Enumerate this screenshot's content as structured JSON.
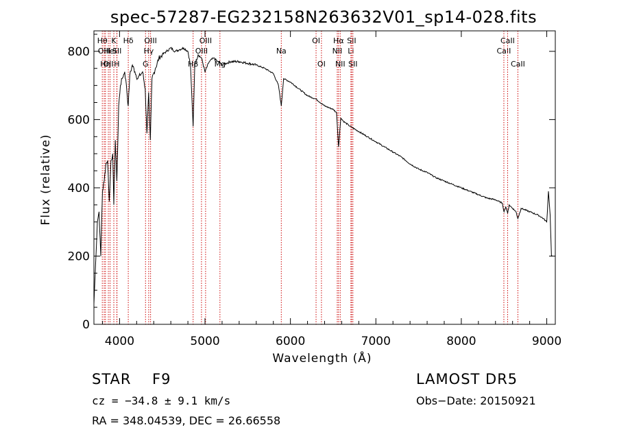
{
  "chart_data": {
    "type": "line",
    "title": "spec-57287-EG232158N263632V01_sp14-028.fits",
    "xlabel": "Wavelength (Å)",
    "ylabel": "Flux (relative)",
    "xlim": [
      3700,
      9100
    ],
    "ylim": [
      0,
      860
    ],
    "xticks": [
      4000,
      5000,
      6000,
      7000,
      8000,
      9000
    ],
    "yticks": [
      0,
      200,
      400,
      600,
      800
    ],
    "grid": false,
    "line_color": "#000000",
    "line_marker_color": "#cc0000",
    "series": [
      {
        "x": [
          3700,
          3720,
          3740,
          3760,
          3780,
          3800,
          3820,
          3840,
          3860,
          3880,
          3900,
          3920,
          3933,
          3950,
          3968,
          3990,
          4010,
          4030,
          4060,
          4080,
          4101,
          4120,
          4150,
          4180,
          4210,
          4240,
          4270,
          4300,
          4320,
          4340,
          4360,
          4380,
          4420,
          4460,
          4500,
          4550,
          4600,
          4650,
          4700,
          4750,
          4800,
          4830,
          4861,
          4880,
          4920,
          4960,
          5000,
          5050,
          5100,
          5150,
          5200,
          5250,
          5300,
          5400,
          5500,
          5600,
          5700,
          5800,
          5860,
          5893,
          5920,
          6000,
          6100,
          6200,
          6300,
          6400,
          6500,
          6540,
          6563,
          6590,
          6620,
          6700,
          6800,
          6900,
          7000,
          7100,
          7200,
          7300,
          7400,
          7500,
          7600,
          7700,
          7800,
          7900,
          8000,
          8100,
          8200,
          8300,
          8400,
          8480,
          8500,
          8520,
          8542,
          8560,
          8600,
          8640,
          8662,
          8700,
          8800,
          8900,
          8960,
          9000,
          9020,
          9040,
          9055,
          9070
        ],
        "y": [
          60,
          180,
          300,
          330,
          200,
          390,
          420,
          470,
          480,
          360,
          480,
          500,
          350,
          540,
          420,
          640,
          700,
          720,
          740,
          700,
          640,
          730,
          760,
          740,
          720,
          730,
          740,
          690,
          560,
          680,
          540,
          720,
          750,
          780,
          790,
          800,
          810,
          800,
          805,
          810,
          800,
          760,
          580,
          760,
          790,
          780,
          740,
          770,
          780,
          770,
          760,
          765,
          770,
          770,
          765,
          760,
          750,
          735,
          700,
          640,
          720,
          710,
          690,
          670,
          660,
          640,
          630,
          620,
          520,
          605,
          595,
          580,
          565,
          550,
          535,
          520,
          505,
          490,
          470,
          455,
          445,
          430,
          420,
          410,
          400,
          390,
          380,
          370,
          365,
          355,
          330,
          345,
          325,
          350,
          340,
          330,
          310,
          340,
          330,
          320,
          310,
          300,
          390,
          320,
          200,
          200
        ]
      }
    ],
    "lines": [
      {
        "w": 3798,
        "label": "Hθ",
        "row": 1
      },
      {
        "w": 3820,
        "label": "OIII",
        "row": 2
      },
      {
        "w": 3835,
        "label": "Hη",
        "row": 3
      },
      {
        "w": 3869,
        "label": "OII",
        "row": 3
      },
      {
        "w": 3889,
        "label": "HeI",
        "row": 2
      },
      {
        "w": 3933,
        "label": "K",
        "row": 1
      },
      {
        "w": 3968,
        "label": "H",
        "row": 3
      },
      {
        "w": 3970,
        "label": "SII",
        "row": 2
      },
      {
        "w": 4102,
        "label": "Hδ",
        "row": 1
      },
      {
        "w": 4304,
        "label": "G",
        "row": 3
      },
      {
        "w": 4341,
        "label": "Hγ",
        "row": 2
      },
      {
        "w": 4363,
        "label": "OIII",
        "row": 1
      },
      {
        "w": 4861,
        "label": "Hβ",
        "row": 3
      },
      {
        "w": 4959,
        "label": "OIII",
        "row": 2
      },
      {
        "w": 5007,
        "label": "OIII",
        "row": 1
      },
      {
        "w": 5175,
        "label": "Mg",
        "row": 3
      },
      {
        "w": 5893,
        "label": "Na",
        "row": 2
      },
      {
        "w": 6300,
        "label": "OI",
        "row": 1
      },
      {
        "w": 6363,
        "label": "OI",
        "row": 3
      },
      {
        "w": 6548,
        "label": "NII",
        "row": 2
      },
      {
        "w": 6563,
        "label": "Hα",
        "row": 1
      },
      {
        "w": 6583,
        "label": "NII",
        "row": 3
      },
      {
        "w": 6708,
        "label": "Li",
        "row": 2
      },
      {
        "w": 6716,
        "label": "SII",
        "row": 1
      },
      {
        "w": 6731,
        "label": "SII",
        "row": 3
      },
      {
        "w": 8498,
        "label": "CaII",
        "row": 2
      },
      {
        "w": 8542,
        "label": "CaII",
        "row": 1
      },
      {
        "w": 8662,
        "label": "CaII",
        "row": 3
      }
    ]
  },
  "info": {
    "class": "STAR",
    "subclass": "F9",
    "survey": "LAMOST DR5",
    "redshift": "cz = −34.8 ± 9.1 km/s",
    "obs_date": "Obs−Date: 20150921",
    "coords": "RA = 348.04539, DEC =  26.66558"
  }
}
